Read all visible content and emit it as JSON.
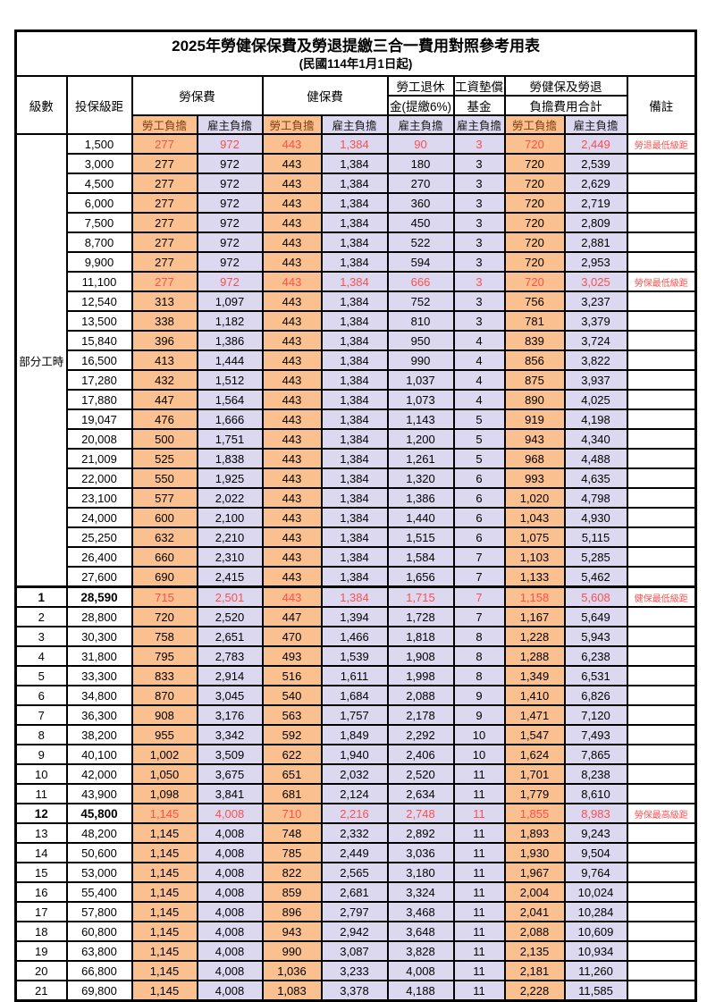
{
  "title": "2025年勞健保保費及勞退提繳三合一費用對照參考用表",
  "subtitle": "(民國114年1月1日起)",
  "header": {
    "level": "級數",
    "bracket": "投保級距",
    "labor_insurance": "勞保費",
    "health_insurance": "健保費",
    "pension_line1": "勞工退休",
    "pension_line2": "金(提繳6%)",
    "wage_fund_line1": "工資墊償",
    "wage_fund_line2": "基金",
    "total_line1": "勞健保及勞退",
    "total_line2": "負擔費用合計",
    "remark": "備註",
    "worker_burden": "勞工負擔",
    "employer_burden": "雇主負擔"
  },
  "part_time": {
    "label": "部分工時",
    "span": 23
  },
  "colors": {
    "worker_bg": "#FAC090",
    "employer_bg": "#DBD8F0",
    "highlight_red": "#FF4F4F",
    "border": "#000000"
  },
  "rows": [
    {
      "lvl": null,
      "bracket": "1,500",
      "v": [
        "277",
        "972",
        "443",
        "1,384",
        "90",
        "3",
        "720",
        "2,449"
      ],
      "remark": "勞退最低級距",
      "red": true
    },
    {
      "lvl": null,
      "bracket": "3,000",
      "v": [
        "277",
        "972",
        "443",
        "1,384",
        "180",
        "3",
        "720",
        "2,539"
      ],
      "remark": ""
    },
    {
      "lvl": null,
      "bracket": "4,500",
      "v": [
        "277",
        "972",
        "443",
        "1,384",
        "270",
        "3",
        "720",
        "2,629"
      ],
      "remark": ""
    },
    {
      "lvl": null,
      "bracket": "6,000",
      "v": [
        "277",
        "972",
        "443",
        "1,384",
        "360",
        "3",
        "720",
        "2,719"
      ],
      "remark": ""
    },
    {
      "lvl": null,
      "bracket": "7,500",
      "v": [
        "277",
        "972",
        "443",
        "1,384",
        "450",
        "3",
        "720",
        "2,809"
      ],
      "remark": ""
    },
    {
      "lvl": null,
      "bracket": "8,700",
      "v": [
        "277",
        "972",
        "443",
        "1,384",
        "522",
        "3",
        "720",
        "2,881"
      ],
      "remark": ""
    },
    {
      "lvl": null,
      "bracket": "9,900",
      "v": [
        "277",
        "972",
        "443",
        "1,384",
        "594",
        "3",
        "720",
        "2,953"
      ],
      "remark": ""
    },
    {
      "lvl": null,
      "bracket": "11,100",
      "v": [
        "277",
        "972",
        "443",
        "1,384",
        "666",
        "3",
        "720",
        "3,025"
      ],
      "remark": "勞保最低級距",
      "red": true
    },
    {
      "lvl": null,
      "bracket": "12,540",
      "v": [
        "313",
        "1,097",
        "443",
        "1,384",
        "752",
        "3",
        "756",
        "3,237"
      ],
      "remark": ""
    },
    {
      "lvl": null,
      "bracket": "13,500",
      "v": [
        "338",
        "1,182",
        "443",
        "1,384",
        "810",
        "3",
        "781",
        "3,379"
      ],
      "remark": ""
    },
    {
      "lvl": null,
      "bracket": "15,840",
      "v": [
        "396",
        "1,386",
        "443",
        "1,384",
        "950",
        "4",
        "839",
        "3,724"
      ],
      "remark": ""
    },
    {
      "lvl": null,
      "bracket": "16,500",
      "v": [
        "413",
        "1,444",
        "443",
        "1,384",
        "990",
        "4",
        "856",
        "3,822"
      ],
      "remark": ""
    },
    {
      "lvl": null,
      "bracket": "17,280",
      "v": [
        "432",
        "1,512",
        "443",
        "1,384",
        "1,037",
        "4",
        "875",
        "3,937"
      ],
      "remark": ""
    },
    {
      "lvl": null,
      "bracket": "17,880",
      "v": [
        "447",
        "1,564",
        "443",
        "1,384",
        "1,073",
        "4",
        "890",
        "4,025"
      ],
      "remark": ""
    },
    {
      "lvl": null,
      "bracket": "19,047",
      "v": [
        "476",
        "1,666",
        "443",
        "1,384",
        "1,143",
        "5",
        "919",
        "4,198"
      ],
      "remark": ""
    },
    {
      "lvl": null,
      "bracket": "20,008",
      "v": [
        "500",
        "1,751",
        "443",
        "1,384",
        "1,200",
        "5",
        "943",
        "4,340"
      ],
      "remark": ""
    },
    {
      "lvl": null,
      "bracket": "21,009",
      "v": [
        "525",
        "1,838",
        "443",
        "1,384",
        "1,261",
        "5",
        "968",
        "4,488"
      ],
      "remark": ""
    },
    {
      "lvl": null,
      "bracket": "22,000",
      "v": [
        "550",
        "1,925",
        "443",
        "1,384",
        "1,320",
        "6",
        "993",
        "4,635"
      ],
      "remark": ""
    },
    {
      "lvl": null,
      "bracket": "23,100",
      "v": [
        "577",
        "2,022",
        "443",
        "1,384",
        "1,386",
        "6",
        "1,020",
        "4,798"
      ],
      "remark": ""
    },
    {
      "lvl": null,
      "bracket": "24,000",
      "v": [
        "600",
        "2,100",
        "443",
        "1,384",
        "1,440",
        "6",
        "1,043",
        "4,930"
      ],
      "remark": ""
    },
    {
      "lvl": null,
      "bracket": "25,250",
      "v": [
        "632",
        "2,210",
        "443",
        "1,384",
        "1,515",
        "6",
        "1,075",
        "5,115"
      ],
      "remark": ""
    },
    {
      "lvl": null,
      "bracket": "26,400",
      "v": [
        "660",
        "2,310",
        "443",
        "1,384",
        "1,584",
        "7",
        "1,103",
        "5,285"
      ],
      "remark": ""
    },
    {
      "lvl": null,
      "bracket": "27,600",
      "v": [
        "690",
        "2,415",
        "443",
        "1,384",
        "1,656",
        "7",
        "1,133",
        "5,462"
      ],
      "remark": ""
    },
    {
      "lvl": "1",
      "bracket": "28,590",
      "v": [
        "715",
        "2,501",
        "443",
        "1,384",
        "1,715",
        "7",
        "1,158",
        "5,608"
      ],
      "remark": "健保最低級距",
      "red": true,
      "bold": true,
      "sec": true
    },
    {
      "lvl": "2",
      "bracket": "28,800",
      "v": [
        "720",
        "2,520",
        "447",
        "1,394",
        "1,728",
        "7",
        "1,167",
        "5,649"
      ],
      "remark": ""
    },
    {
      "lvl": "3",
      "bracket": "30,300",
      "v": [
        "758",
        "2,651",
        "470",
        "1,466",
        "1,818",
        "8",
        "1,228",
        "5,943"
      ],
      "remark": ""
    },
    {
      "lvl": "4",
      "bracket": "31,800",
      "v": [
        "795",
        "2,783",
        "493",
        "1,539",
        "1,908",
        "8",
        "1,288",
        "6,238"
      ],
      "remark": ""
    },
    {
      "lvl": "5",
      "bracket": "33,300",
      "v": [
        "833",
        "2,914",
        "516",
        "1,611",
        "1,998",
        "8",
        "1,349",
        "6,531"
      ],
      "remark": ""
    },
    {
      "lvl": "6",
      "bracket": "34,800",
      "v": [
        "870",
        "3,045",
        "540",
        "1,684",
        "2,088",
        "9",
        "1,410",
        "6,826"
      ],
      "remark": ""
    },
    {
      "lvl": "7",
      "bracket": "36,300",
      "v": [
        "908",
        "3,176",
        "563",
        "1,757",
        "2,178",
        "9",
        "1,471",
        "7,120"
      ],
      "remark": ""
    },
    {
      "lvl": "8",
      "bracket": "38,200",
      "v": [
        "955",
        "3,342",
        "592",
        "1,849",
        "2,292",
        "10",
        "1,547",
        "7,493"
      ],
      "remark": ""
    },
    {
      "lvl": "9",
      "bracket": "40,100",
      "v": [
        "1,002",
        "3,509",
        "622",
        "1,940",
        "2,406",
        "10",
        "1,624",
        "7,865"
      ],
      "remark": ""
    },
    {
      "lvl": "10",
      "bracket": "42,000",
      "v": [
        "1,050",
        "3,675",
        "651",
        "2,032",
        "2,520",
        "11",
        "1,701",
        "8,238"
      ],
      "remark": ""
    },
    {
      "lvl": "11",
      "bracket": "43,900",
      "v": [
        "1,098",
        "3,841",
        "681",
        "2,124",
        "2,634",
        "11",
        "1,779",
        "8,610"
      ],
      "remark": ""
    },
    {
      "lvl": "12",
      "bracket": "45,800",
      "v": [
        "1,145",
        "4,008",
        "710",
        "2,216",
        "2,748",
        "11",
        "1,855",
        "8,983"
      ],
      "remark": "勞保最高級距",
      "red": true,
      "bold": true
    },
    {
      "lvl": "13",
      "bracket": "48,200",
      "v": [
        "1,145",
        "4,008",
        "748",
        "2,332",
        "2,892",
        "11",
        "1,893",
        "9,243"
      ],
      "remark": ""
    },
    {
      "lvl": "14",
      "bracket": "50,600",
      "v": [
        "1,145",
        "4,008",
        "785",
        "2,449",
        "3,036",
        "11",
        "1,930",
        "9,504"
      ],
      "remark": ""
    },
    {
      "lvl": "15",
      "bracket": "53,000",
      "v": [
        "1,145",
        "4,008",
        "822",
        "2,565",
        "3,180",
        "11",
        "1,967",
        "9,764"
      ],
      "remark": ""
    },
    {
      "lvl": "16",
      "bracket": "55,400",
      "v": [
        "1,145",
        "4,008",
        "859",
        "2,681",
        "3,324",
        "11",
        "2,004",
        "10,024"
      ],
      "remark": ""
    },
    {
      "lvl": "17",
      "bracket": "57,800",
      "v": [
        "1,145",
        "4,008",
        "896",
        "2,797",
        "3,468",
        "11",
        "2,041",
        "10,284"
      ],
      "remark": ""
    },
    {
      "lvl": "18",
      "bracket": "60,800",
      "v": [
        "1,145",
        "4,008",
        "943",
        "2,942",
        "3,648",
        "11",
        "2,088",
        "10,609"
      ],
      "remark": ""
    },
    {
      "lvl": "19",
      "bracket": "63,800",
      "v": [
        "1,145",
        "4,008",
        "990",
        "3,087",
        "3,828",
        "11",
        "2,135",
        "10,934"
      ],
      "remark": ""
    },
    {
      "lvl": "20",
      "bracket": "66,800",
      "v": [
        "1,145",
        "4,008",
        "1,036",
        "3,233",
        "4,008",
        "11",
        "2,181",
        "11,260"
      ],
      "remark": ""
    },
    {
      "lvl": "21",
      "bracket": "69,800",
      "v": [
        "1,145",
        "4,008",
        "1,083",
        "3,378",
        "4,188",
        "11",
        "2,228",
        "11,585"
      ],
      "remark": ""
    }
  ]
}
